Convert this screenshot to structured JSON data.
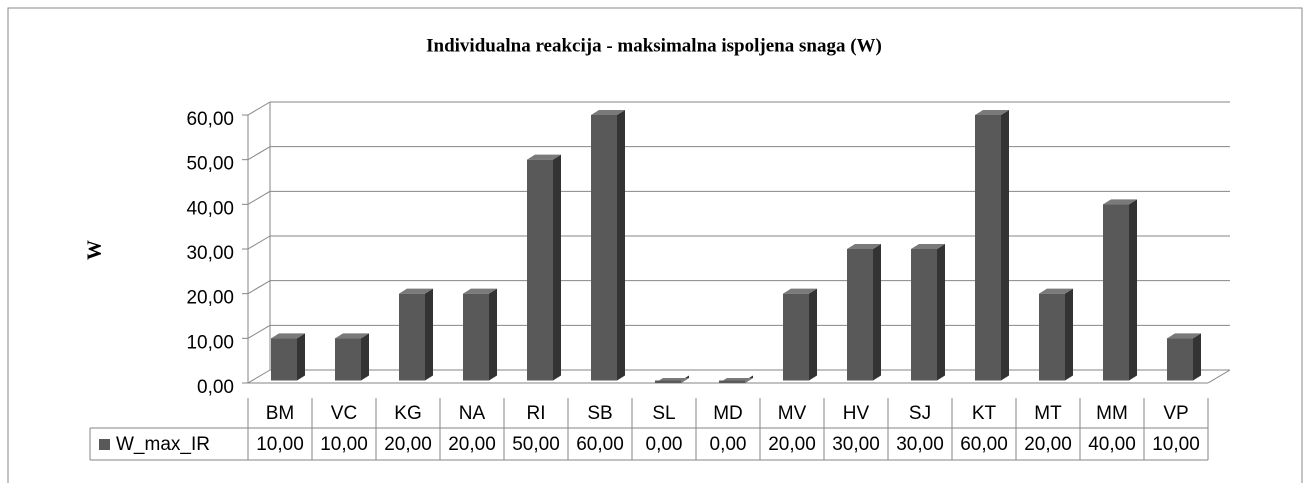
{
  "chart_data": {
    "type": "bar",
    "title": "Individualna reakcija - maksimalna ispoljena snaga (W)",
    "y_label": "W",
    "categories": [
      "BM",
      "VC",
      "KG",
      "NA",
      "RI",
      "SB",
      "SL",
      "MD",
      "MV",
      "HV",
      "SJ",
      "KT",
      "MT",
      "MM",
      "VP"
    ],
    "series": [
      {
        "name": "W_max_IR",
        "color": "#595959",
        "values": [
          10,
          10,
          20,
          20,
          50,
          60,
          0,
          0,
          20,
          30,
          30,
          60,
          20,
          40,
          10
        ],
        "value_labels": [
          "10,00",
          "10,00",
          "20,00",
          "20,00",
          "50,00",
          "60,00",
          "0,00",
          "0,00",
          "20,00",
          "30,00",
          "30,00",
          "60,00",
          "20,00",
          "40,00",
          "10,00"
        ]
      }
    ],
    "ylim": [
      0,
      60
    ],
    "yticks": [
      {
        "value": 0,
        "label": "0,00"
      },
      {
        "value": 10,
        "label": "10,00"
      },
      {
        "value": 20,
        "label": "20,00"
      },
      {
        "value": 30,
        "label": "30,00"
      },
      {
        "value": 40,
        "label": "40,00"
      },
      {
        "value": 50,
        "label": "50,00"
      },
      {
        "value": 60,
        "label": "60,00"
      }
    ],
    "grid": true,
    "legend": "table"
  }
}
